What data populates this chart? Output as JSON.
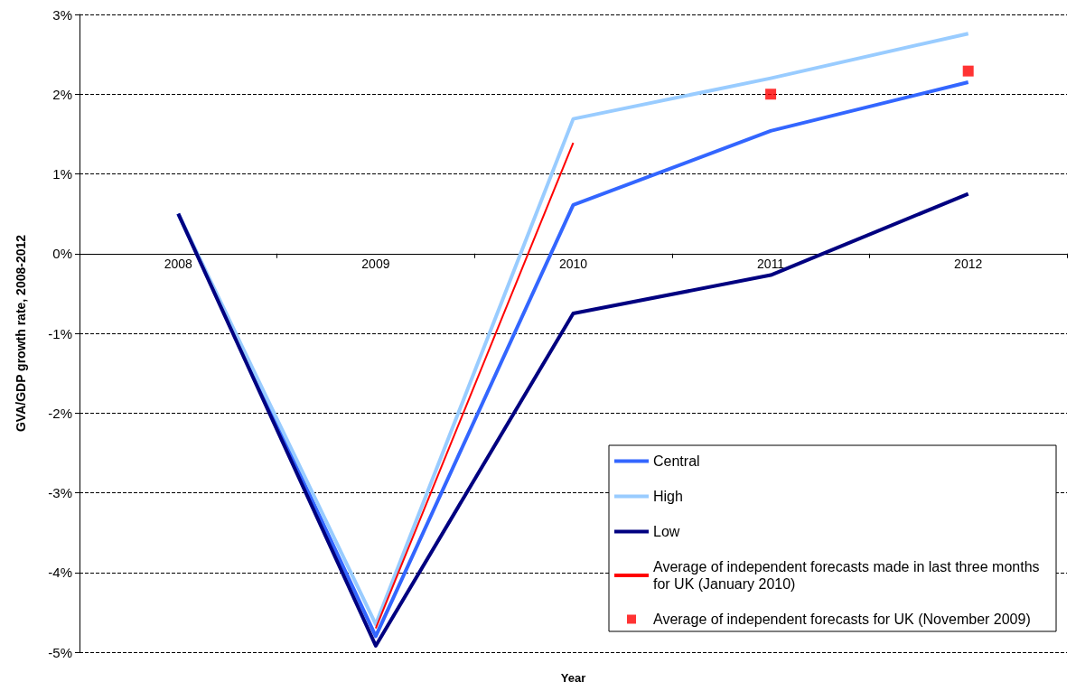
{
  "chart_data": {
    "type": "line",
    "xlabel": "Year",
    "ylabel": "GVA/GDP growth rate, 2008-2012",
    "categories": [
      "2008",
      "2009",
      "2010",
      "2011",
      "2012"
    ],
    "series": [
      {
        "name": "Central",
        "color": "#3366ff",
        "values": [
          0.5,
          -4.8,
          0.61,
          1.54,
          2.15
        ]
      },
      {
        "name": "High",
        "color": "#99ccff",
        "values": [
          0.5,
          -4.65,
          1.69,
          2.2,
          2.76
        ]
      },
      {
        "name": "Low",
        "color": "#000080",
        "values": [
          0.5,
          -4.92,
          -0.75,
          -0.27,
          0.75
        ]
      },
      {
        "name": "Average of independent forecasts made in last three months for UK (January 2010)",
        "color": "#ff0000",
        "values": [
          null,
          -4.7,
          1.39,
          null,
          null
        ]
      },
      {
        "name": "Average of independent forecasts for UK (November 2009)",
        "color": "#ff0000",
        "type": "scatter",
        "marker": "square",
        "values": [
          null,
          null,
          null,
          2.0,
          2.29
        ]
      }
    ],
    "ylim": [
      -5,
      3
    ],
    "yticks": [
      {
        "value": -5,
        "label": "-5%"
      },
      {
        "value": -4,
        "label": "-4%"
      },
      {
        "value": -3,
        "label": "-3%"
      },
      {
        "value": -2,
        "label": "-2%"
      },
      {
        "value": -1,
        "label": "-1%"
      },
      {
        "value": 0,
        "label": "0%"
      },
      {
        "value": 1,
        "label": "1%"
      },
      {
        "value": 2,
        "label": "2%"
      },
      {
        "value": 3,
        "label": "3%"
      }
    ],
    "grid": "y",
    "legend": "bottom right",
    "marker": "none",
    "line_style": "solid"
  }
}
